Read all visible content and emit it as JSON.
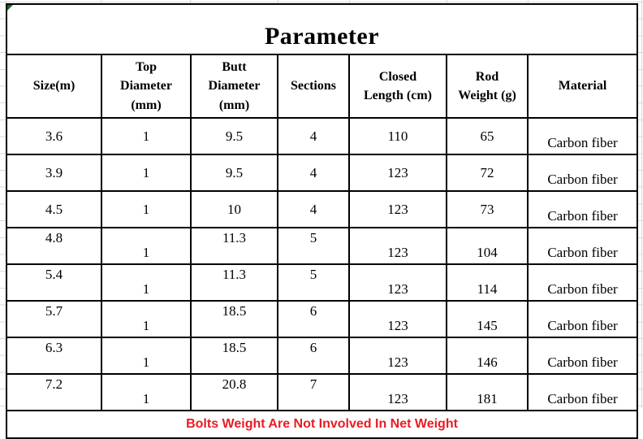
{
  "title": "Parameter",
  "columns": [
    {
      "key": "size",
      "label": "Size(m)"
    },
    {
      "key": "top_diameter",
      "label": "Top\nDiameter\n(mm)"
    },
    {
      "key": "butt_diameter",
      "label": "Butt\nDiameter\n(mm)"
    },
    {
      "key": "sections",
      "label": "Sections"
    },
    {
      "key": "closed_length",
      "label": "Closed\nLength (cm)"
    },
    {
      "key": "rod_weight",
      "label": "Rod\nWeight (g)"
    },
    {
      "key": "material",
      "label": "Material"
    }
  ],
  "rows": [
    {
      "size": "3.6",
      "top_diameter": "1",
      "butt_diameter": "9.5",
      "sections": "4",
      "closed_length": "110",
      "rod_weight": "65",
      "material": "Carbon fiber"
    },
    {
      "size": "3.9",
      "top_diameter": "1",
      "butt_diameter": "9.5",
      "sections": "4",
      "closed_length": "123",
      "rod_weight": "72",
      "material": "Carbon fiber"
    },
    {
      "size": "4.5",
      "top_diameter": "1",
      "butt_diameter": "10",
      "sections": "4",
      "closed_length": "123",
      "rod_weight": "73",
      "material": "Carbon fiber"
    },
    {
      "size": "4.8",
      "top_diameter": "1",
      "butt_diameter": "11.3",
      "sections": "5",
      "closed_length": "123",
      "rod_weight": "104",
      "material": "Carbon fiber"
    },
    {
      "size": "5.4",
      "top_diameter": "1",
      "butt_diameter": "11.3",
      "sections": "5",
      "closed_length": "123",
      "rod_weight": "114",
      "material": "Carbon fiber"
    },
    {
      "size": "5.7",
      "top_diameter": "1",
      "butt_diameter": "18.5",
      "sections": "6",
      "closed_length": "123",
      "rod_weight": "145",
      "material": "Carbon fiber"
    },
    {
      "size": "6.3",
      "top_diameter": "1",
      "butt_diameter": "18.5",
      "sections": "6",
      "closed_length": "123",
      "rod_weight": "146",
      "material": "Carbon fiber"
    },
    {
      "size": "7.2",
      "top_diameter": "1",
      "butt_diameter": "20.8",
      "sections": "7",
      "closed_length": "123",
      "rod_weight": "181",
      "material": "Carbon fiber"
    }
  ],
  "footer_note": "Bolts Weight Are Not Involved In Net Weight",
  "colors": {
    "note_red": "#E81C24",
    "error_indicator_green": "#176B1E",
    "table_border": "#000000",
    "gridline": "#D9D9D9"
  }
}
